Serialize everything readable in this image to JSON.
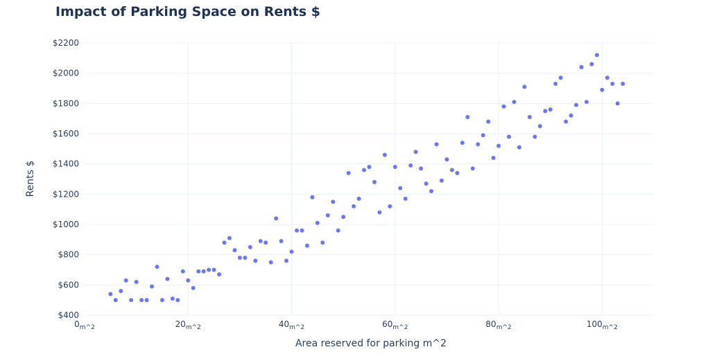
{
  "chart_data": {
    "type": "scatter",
    "title": "Impact of Parking Space on Rents $",
    "xlabel": "Area reserved for parking m^2",
    "ylabel": "Rents $",
    "xlim": [
      0,
      110
    ],
    "ylim": [
      400,
      2200
    ],
    "x_ticks": [
      0,
      20,
      40,
      60,
      80,
      100
    ],
    "x_tick_suffix": "m^2",
    "y_ticks": [
      400,
      600,
      800,
      1000,
      1200,
      1400,
      1600,
      1800,
      2000,
      2200
    ],
    "y_tick_prefix": "$",
    "grid": true,
    "marker_color": "#636efa",
    "points": [
      [
        5,
        540
      ],
      [
        6,
        500
      ],
      [
        7,
        560
      ],
      [
        8,
        630
      ],
      [
        9,
        500
      ],
      [
        10,
        620
      ],
      [
        11,
        500
      ],
      [
        12,
        500
      ],
      [
        13,
        590
      ],
      [
        14,
        720
      ],
      [
        15,
        500
      ],
      [
        16,
        640
      ],
      [
        17,
        510
      ],
      [
        18,
        500
      ],
      [
        19,
        690
      ],
      [
        20,
        630
      ],
      [
        21,
        580
      ],
      [
        22,
        690
      ],
      [
        23,
        690
      ],
      [
        24,
        700
      ],
      [
        25,
        700
      ],
      [
        26,
        670
      ],
      [
        27,
        880
      ],
      [
        28,
        910
      ],
      [
        29,
        830
      ],
      [
        30,
        780
      ],
      [
        31,
        780
      ],
      [
        32,
        850
      ],
      [
        33,
        760
      ],
      [
        34,
        890
      ],
      [
        35,
        880
      ],
      [
        36,
        750
      ],
      [
        37,
        1040
      ],
      [
        38,
        890
      ],
      [
        39,
        760
      ],
      [
        40,
        820
      ],
      [
        41,
        960
      ],
      [
        42,
        960
      ],
      [
        43,
        860
      ],
      [
        44,
        1180
      ],
      [
        45,
        1010
      ],
      [
        46,
        880
      ],
      [
        47,
        1060
      ],
      [
        48,
        1150
      ],
      [
        49,
        960
      ],
      [
        50,
        1050
      ],
      [
        51,
        1340
      ],
      [
        52,
        1120
      ],
      [
        53,
        1170
      ],
      [
        54,
        1360
      ],
      [
        55,
        1380
      ],
      [
        56,
        1280
      ],
      [
        57,
        1080
      ],
      [
        58,
        1460
      ],
      [
        59,
        1120
      ],
      [
        60,
        1380
      ],
      [
        61,
        1240
      ],
      [
        62,
        1170
      ],
      [
        63,
        1390
      ],
      [
        64,
        1480
      ],
      [
        65,
        1370
      ],
      [
        66,
        1270
      ],
      [
        67,
        1220
      ],
      [
        68,
        1530
      ],
      [
        69,
        1290
      ],
      [
        70,
        1430
      ],
      [
        71,
        1360
      ],
      [
        72,
        1340
      ],
      [
        73,
        1540
      ],
      [
        74,
        1710
      ],
      [
        75,
        1370
      ],
      [
        76,
        1530
      ],
      [
        77,
        1590
      ],
      [
        78,
        1680
      ],
      [
        79,
        1440
      ],
      [
        80,
        1520
      ],
      [
        81,
        1780
      ],
      [
        82,
        1580
      ],
      [
        83,
        1810
      ],
      [
        84,
        1510
      ],
      [
        85,
        1910
      ],
      [
        86,
        1710
      ],
      [
        87,
        1580
      ],
      [
        88,
        1650
      ],
      [
        89,
        1750
      ],
      [
        90,
        1760
      ],
      [
        91,
        1930
      ],
      [
        92,
        1970
      ],
      [
        93,
        1680
      ],
      [
        94,
        1720
      ],
      [
        95,
        1790
      ],
      [
        96,
        2040
      ],
      [
        97,
        1810
      ],
      [
        98,
        2060
      ],
      [
        99,
        2120
      ],
      [
        100,
        1890
      ],
      [
        101,
        1970
      ],
      [
        102,
        1930
      ],
      [
        103,
        1800
      ],
      [
        104,
        1930
      ]
    ]
  }
}
